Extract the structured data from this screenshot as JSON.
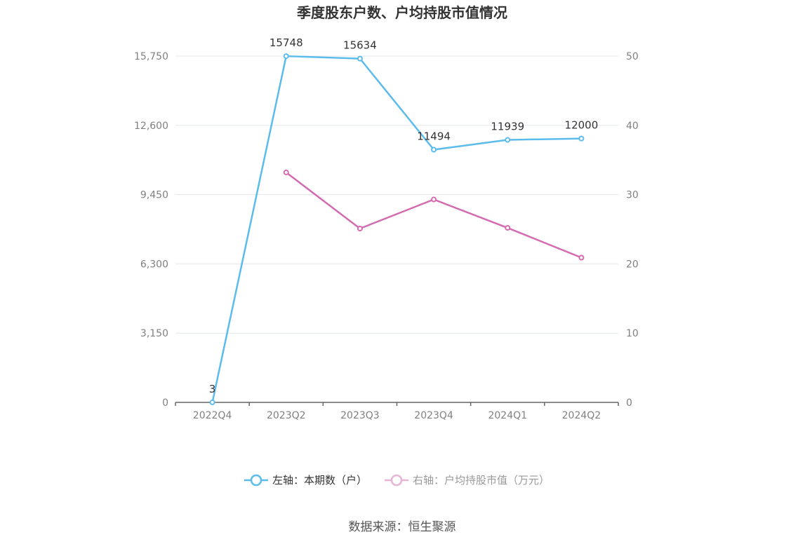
{
  "chart_data": {
    "type": "line",
    "title": "季度股东户数、户均持股市值情况",
    "categories": [
      "2022Q4",
      "2023Q2",
      "2023Q3",
      "2023Q4",
      "2024Q1",
      "2024Q2"
    ],
    "y_left": {
      "min": 0,
      "max": 15750,
      "ticks": [
        "0",
        "3,150",
        "6,300",
        "9,450",
        "12,600",
        "15,750"
      ]
    },
    "y_right": {
      "min": 0,
      "max": 50,
      "ticks": [
        "0",
        "10",
        "20",
        "30",
        "40",
        "50"
      ]
    },
    "grid": true,
    "legend_position": "bottom",
    "series": [
      {
        "name": "左轴：本期数（户）",
        "axis": "left",
        "color": "#5bbcec",
        "values": [
          3,
          15748,
          15634,
          11494,
          11939,
          12000
        ],
        "labels": [
          "3",
          "15748",
          "15634",
          "11494",
          "11939",
          "12000"
        ]
      },
      {
        "name": "右轴：户均持股市值（万元）",
        "axis": "right",
        "color": "#d46bb0",
        "values": [
          null,
          33.2,
          25.1,
          29.3,
          25.2,
          20.9
        ],
        "labels": []
      }
    ]
  },
  "source": "数据来源：恒生聚源",
  "legend_text_colors": {
    "active": "#333333",
    "inactive": "#999999"
  },
  "legend_inactive_marker_color": "#e8b4d6"
}
